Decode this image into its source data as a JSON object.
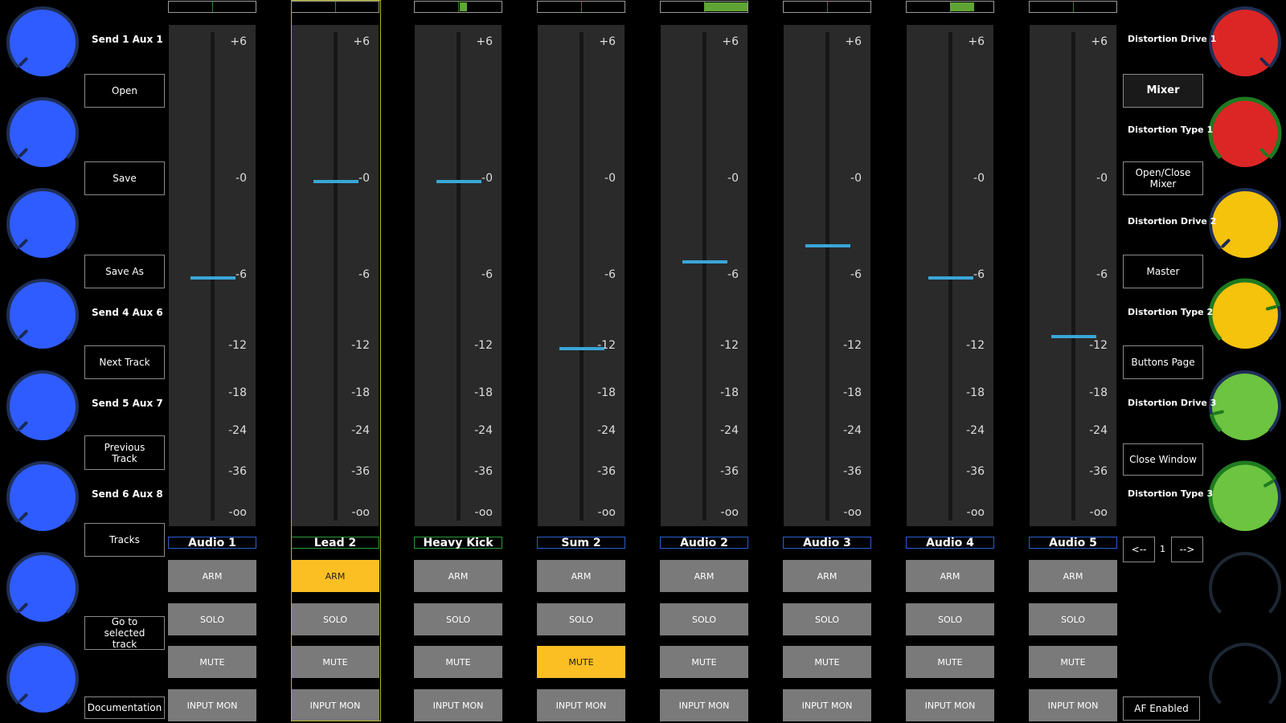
{
  "colors": {
    "knob_blue": "#2f5cff",
    "knob_red": "#dc2626",
    "knob_yellow": "#f5c20c",
    "knob_green": "#6cc440",
    "active_button": "#fbbf24",
    "fader_handle": "#3aa6d8",
    "meter_fill": "#5fa534",
    "selected_frame": "#b5b52a"
  },
  "left_panel": {
    "knob_icon": "rotary-knob",
    "labels": [
      "Send 1  Aux 1",
      "Send 4  Aux 6",
      "Send 5  Aux 7",
      "Send 6  Aux 8"
    ],
    "buttons": [
      "Open",
      "Save",
      "Save As",
      "Next Track",
      "Previous Track",
      "Tracks",
      "Go to selected track",
      "Documentation"
    ]
  },
  "right_panel": {
    "labels": [
      "Distortion Drive 1",
      "Distortion Type 1",
      "Distortion Drive 2",
      "Distortion Type 2",
      "Distortion Drive 3",
      "Distortion Type 3"
    ],
    "buttons": [
      "Mixer",
      "Open/Close Mixer",
      "Master",
      "Buttons Page",
      "Close Window"
    ],
    "pager": {
      "prev": "<--",
      "page": "1",
      "next": "-->"
    },
    "status": "AF Enabled"
  },
  "scale_labels": [
    "+6",
    "-0",
    "-6",
    "-12",
    "-18",
    "-24",
    "-36",
    "-oo"
  ],
  "button_labels": {
    "arm": "ARM",
    "solo": "SOLO",
    "mute": "MUTE",
    "input_mon": "INPUT MON"
  },
  "channels": [
    {
      "name": "Audio 1",
      "fader_db": -6,
      "arm": false,
      "mute": false,
      "selected": false,
      "meter": null
    },
    {
      "name": "Lead 2",
      "fader_db": 0,
      "arm": true,
      "mute": false,
      "selected": true,
      "meter": null
    },
    {
      "name": "Heavy Kick",
      "fader_db": 0,
      "arm": false,
      "mute": false,
      "selected": false,
      "meter": [
        0.52,
        0.6
      ]
    },
    {
      "name": "Sum 2",
      "fader_db": -12,
      "arm": false,
      "mute": true,
      "selected": false,
      "meter": null
    },
    {
      "name": "Audio 2",
      "fader_db": -5,
      "arm": false,
      "mute": false,
      "selected": false,
      "meter": [
        0.5,
        1.0
      ]
    },
    {
      "name": "Audio 3",
      "fader_db": -4,
      "arm": false,
      "mute": false,
      "selected": false,
      "meter": null
    },
    {
      "name": "Audio 4",
      "fader_db": -6,
      "arm": false,
      "mute": false,
      "selected": false,
      "meter": [
        0.5,
        0.78
      ]
    },
    {
      "name": "Audio 5",
      "fader_db": -11,
      "arm": false,
      "mute": false,
      "selected": false,
      "meter": null
    }
  ]
}
